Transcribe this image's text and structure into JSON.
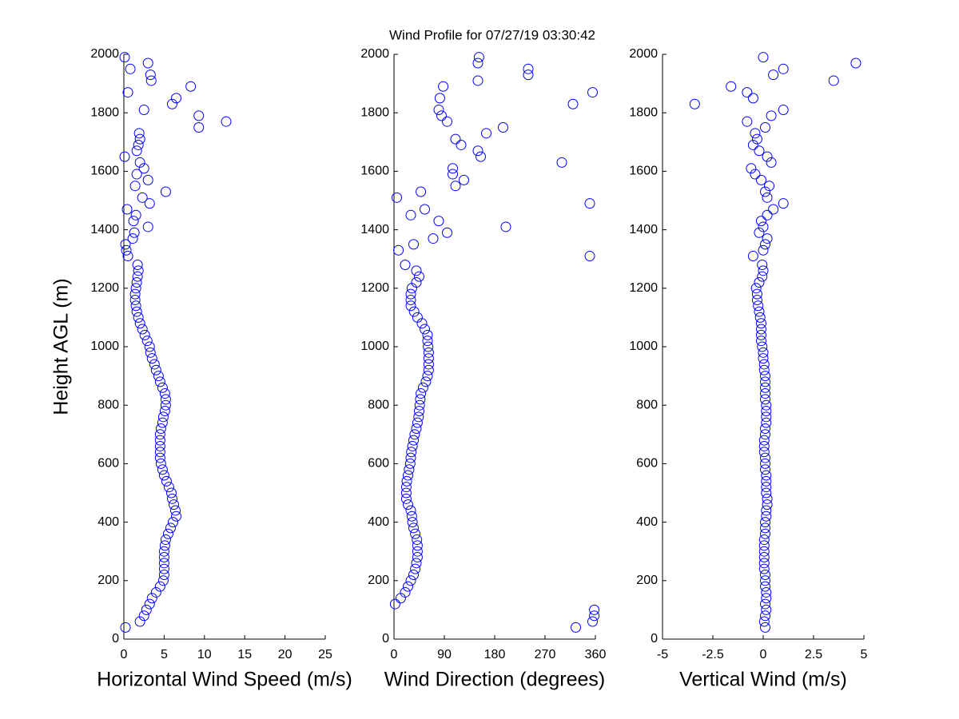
{
  "chart_data": [
    {
      "type": "scatter",
      "title": "Wind Profile for  07/27/19 03:30:42",
      "xlabel": "Horizontal Wind Speed (m/s)",
      "ylabel": "Height AGL (m)",
      "color": "#0000ff",
      "xlim": [
        0,
        25
      ],
      "xticks": [
        0,
        5,
        10,
        15,
        20,
        25
      ],
      "ylim": [
        0,
        2000
      ],
      "yticks": [
        0,
        200,
        400,
        600,
        800,
        1000,
        1200,
        1400,
        1600,
        1800,
        2000
      ],
      "x": [
        0.2,
        2,
        2.5,
        2.8,
        3.2,
        3.5,
        4,
        4.5,
        4.9,
        5,
        5,
        5,
        5,
        5,
        5.1,
        5.2,
        5.5,
        5.8,
        6.1,
        6.5,
        6.4,
        6.2,
        6,
        5.9,
        5.6,
        5.3,
        5,
        4.8,
        4.6,
        4.5,
        4.5,
        4.5,
        4.5,
        4.5,
        4.6,
        4.8,
        4.9,
        5.1,
        5.2,
        5.2,
        5.1,
        4.8,
        4.5,
        4.3,
        4,
        3.8,
        3.5,
        3.3,
        3.2,
        2.9,
        2.6,
        2.3,
        2,
        1.8,
        1.6,
        1.5,
        1.4,
        1.4,
        1.5,
        1.6,
        1.7,
        1.8,
        1.7,
        0.5,
        0.3,
        0.2,
        1.1,
        1.3,
        3,
        1.2,
        1.5,
        0.4,
        3.2,
        2.3,
        5.2,
        1.4,
        3,
        1.6,
        2.5,
        2,
        0.1,
        1.6,
        1.8,
        2,
        1.9,
        9.3,
        12.7,
        9.3,
        2.5,
        6,
        6.5,
        0.5,
        8.3,
        3.4,
        3.3,
        0.8,
        3,
        0.1
      ],
      "y": [
        40,
        60,
        80,
        100,
        120,
        140,
        160,
        180,
        200,
        220,
        240,
        260,
        280,
        300,
        320,
        340,
        360,
        380,
        400,
        420,
        440,
        460,
        480,
        500,
        520,
        540,
        560,
        580,
        600,
        620,
        640,
        660,
        680,
        700,
        720,
        740,
        760,
        780,
        800,
        820,
        840,
        860,
        880,
        900,
        920,
        940,
        960,
        980,
        1000,
        1020,
        1040,
        1060,
        1080,
        1100,
        1120,
        1140,
        1160,
        1180,
        1200,
        1220,
        1240,
        1260,
        1280,
        1310,
        1330,
        1350,
        1370,
        1390,
        1410,
        1430,
        1450,
        1470,
        1490,
        1510,
        1530,
        1550,
        1570,
        1590,
        1610,
        1630,
        1650,
        1670,
        1690,
        1710,
        1730,
        1750,
        1770,
        1790,
        1810,
        1830,
        1850,
        1870,
        1890,
        1910,
        1930,
        1950,
        1970,
        1990
      ]
    },
    {
      "type": "scatter",
      "xlabel": "Wind Direction (degrees)",
      "color": "#0000ff",
      "xlim": [
        0,
        360
      ],
      "xticks": [
        0,
        90,
        180,
        270,
        360
      ],
      "ylim": [
        0,
        2000
      ],
      "yticks": [
        0,
        200,
        400,
        600,
        800,
        1000,
        1200,
        1400,
        1600,
        1800,
        2000
      ],
      "x": [
        325,
        355,
        358,
        358,
        2,
        12,
        20,
        25,
        30,
        35,
        38,
        40,
        42,
        42,
        42,
        41,
        38,
        35,
        33,
        32,
        30,
        25,
        22,
        22,
        22,
        23,
        25,
        27,
        29,
        30,
        31,
        33,
        35,
        37,
        40,
        42,
        44,
        45,
        46,
        47,
        48,
        52,
        57,
        60,
        62,
        62,
        62,
        62,
        61,
        60,
        60,
        55,
        50,
        42,
        36,
        30,
        30,
        30,
        32,
        40,
        45,
        40,
        20,
        350,
        8,
        35,
        70,
        95,
        200,
        80,
        30,
        55,
        350,
        5,
        48,
        110,
        125,
        105,
        105,
        300,
        155,
        150,
        120,
        110,
        165,
        195,
        95,
        85,
        80,
        320,
        82,
        355,
        88,
        150,
        240,
        240,
        150,
        152
      ],
      "y": [
        40,
        60,
        80,
        100,
        120,
        140,
        160,
        180,
        200,
        220,
        240,
        260,
        280,
        300,
        320,
        340,
        360,
        380,
        400,
        420,
        440,
        460,
        480,
        500,
        520,
        540,
        560,
        580,
        600,
        620,
        640,
        660,
        680,
        700,
        720,
        740,
        760,
        780,
        800,
        820,
        840,
        860,
        880,
        900,
        920,
        940,
        960,
        980,
        1000,
        1020,
        1040,
        1060,
        1080,
        1100,
        1120,
        1140,
        1160,
        1180,
        1200,
        1220,
        1240,
        1260,
        1280,
        1310,
        1330,
        1350,
        1370,
        1390,
        1410,
        1430,
        1450,
        1470,
        1490,
        1510,
        1530,
        1550,
        1570,
        1590,
        1610,
        1630,
        1650,
        1670,
        1690,
        1710,
        1730,
        1750,
        1770,
        1790,
        1810,
        1830,
        1850,
        1870,
        1890,
        1910,
        1930,
        1950,
        1970,
        1990
      ]
    },
    {
      "type": "scatter",
      "xlabel": "Vertical Wind (m/s)",
      "color": "#0000ff",
      "xlim": [
        -5,
        5
      ],
      "xticks": [
        -5,
        -2.5,
        0,
        2.5,
        5
      ],
      "ylim": [
        0,
        2000
      ],
      "yticks": [
        0,
        200,
        400,
        600,
        800,
        1000,
        1200,
        1400,
        1600,
        1800,
        2000
      ],
      "x": [
        0.1,
        0.05,
        0.1,
        0.15,
        0.1,
        0.15,
        0.15,
        0.1,
        0.1,
        0.1,
        0.05,
        0.05,
        0.05,
        0.05,
        0.05,
        0.05,
        0.1,
        0.1,
        0.1,
        0.15,
        0.15,
        0.2,
        0.2,
        0.15,
        0.15,
        0.15,
        0.15,
        0.1,
        0.1,
        0.1,
        0.05,
        0.05,
        0.05,
        0.1,
        0.1,
        0.15,
        0.15,
        0.15,
        0.15,
        0.1,
        0.1,
        0.1,
        0.1,
        0.1,
        0.05,
        0.05,
        0,
        0,
        -0.05,
        -0.1,
        -0.1,
        -0.1,
        -0.1,
        -0.15,
        -0.2,
        -0.25,
        -0.3,
        -0.3,
        -0.35,
        -0.2,
        -0.05,
        0,
        -0.05,
        -0.5,
        0,
        0.1,
        0.2,
        -0.2,
        0,
        -0.1,
        0.2,
        0.5,
        1,
        0.2,
        0.1,
        0.3,
        -0.1,
        -0.4,
        -0.6,
        0.4,
        0.2,
        -0.2,
        -0.5,
        -0.3,
        -0.4,
        0.1,
        -0.8,
        0.4,
        1,
        -3.4,
        -0.5,
        -0.8,
        -1.6,
        3.5,
        0.5,
        1,
        4.6,
        0
      ],
      "y": [
        40,
        60,
        80,
        100,
        120,
        140,
        160,
        180,
        200,
        220,
        240,
        260,
        280,
        300,
        320,
        340,
        360,
        380,
        400,
        420,
        440,
        460,
        480,
        500,
        520,
        540,
        560,
        580,
        600,
        620,
        640,
        660,
        680,
        700,
        720,
        740,
        760,
        780,
        800,
        820,
        840,
        860,
        880,
        900,
        920,
        940,
        960,
        980,
        1000,
        1020,
        1040,
        1060,
        1080,
        1100,
        1120,
        1140,
        1160,
        1180,
        1200,
        1220,
        1240,
        1260,
        1280,
        1310,
        1330,
        1350,
        1370,
        1390,
        1410,
        1430,
        1450,
        1470,
        1490,
        1510,
        1530,
        1550,
        1570,
        1590,
        1610,
        1630,
        1650,
        1670,
        1690,
        1710,
        1730,
        1750,
        1770,
        1790,
        1810,
        1830,
        1850,
        1870,
        1890,
        1910,
        1930,
        1950,
        1970,
        1990
      ]
    }
  ]
}
